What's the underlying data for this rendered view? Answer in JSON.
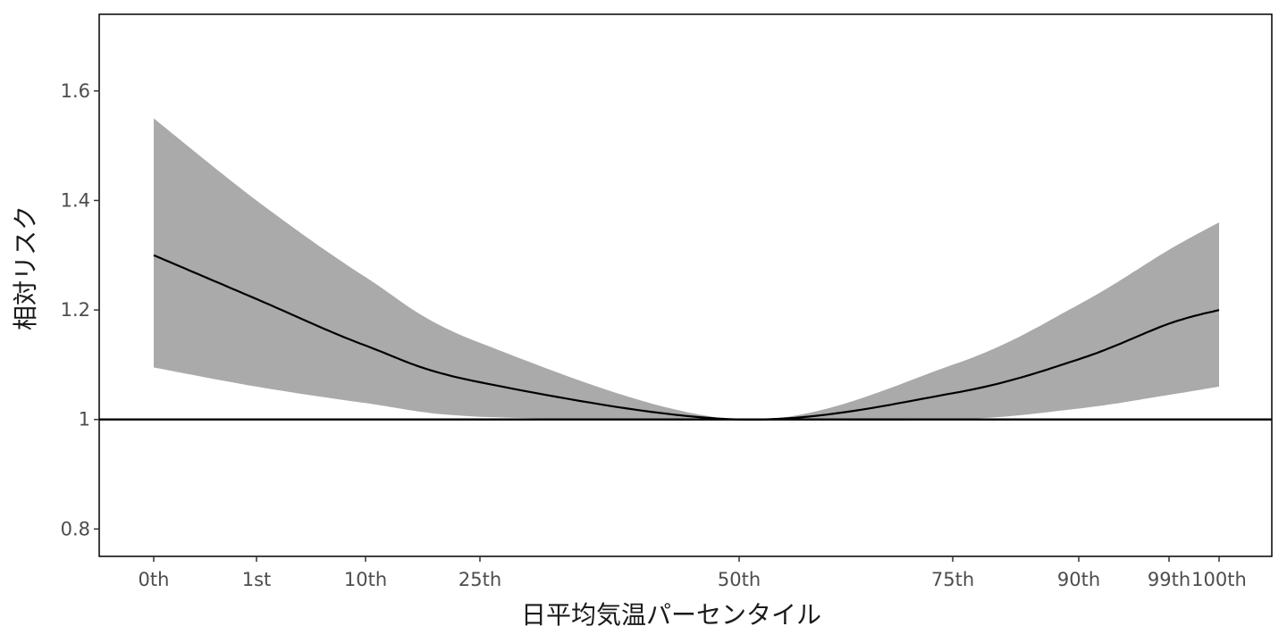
{
  "chart_data": {
    "type": "line",
    "title": "",
    "xlabel": "日平均気温パーセンタイル",
    "ylabel": "相対リスク",
    "x_ticks": [
      {
        "label": "0th",
        "pct": 0
      },
      {
        "label": "1st",
        "pct": 1
      },
      {
        "label": "10th",
        "pct": 10
      },
      {
        "label": "25th",
        "pct": 25
      },
      {
        "label": "50th",
        "pct": 50
      },
      {
        "label": "75th",
        "pct": 75
      },
      {
        "label": "90th",
        "pct": 90
      },
      {
        "label": "99th",
        "pct": 99
      },
      {
        "label": "100th",
        "pct": 100
      }
    ],
    "y_ticks": [
      {
        "label": "0.8",
        "value": 0.8
      },
      {
        "label": "1",
        "value": 1.0
      },
      {
        "label": "1.2",
        "value": 1.2
      },
      {
        "label": "1.4",
        "value": 1.4
      },
      {
        "label": "1.6",
        "value": 1.6
      }
    ],
    "ylim": [
      0.75,
      1.74
    ],
    "reference_line": 1.0,
    "grid": false,
    "series": [
      {
        "type": "line",
        "x": [
          0,
          1,
          10,
          25,
          50,
          75,
          90,
          99,
          100
        ],
        "y": [
          1.3,
          1.22,
          1.135,
          1.068,
          1.0,
          1.048,
          1.11,
          1.175,
          1.2
        ]
      },
      {
        "type": "band",
        "x": [
          0,
          1,
          10,
          25,
          50,
          75,
          90,
          99,
          100
        ],
        "upper": [
          1.55,
          1.4,
          1.26,
          1.14,
          1.0,
          1.1,
          1.21,
          1.31,
          1.36
        ],
        "lower": [
          1.095,
          1.06,
          1.03,
          1.005,
          1.0,
          1.0,
          1.02,
          1.045,
          1.06
        ]
      }
    ],
    "colors": {
      "line": "#000000",
      "band": "#aaaaaa",
      "reference": "#000000",
      "frame": "#000000",
      "tick_text": "#4d4d4d",
      "title_text": "#1a1a1a"
    }
  }
}
